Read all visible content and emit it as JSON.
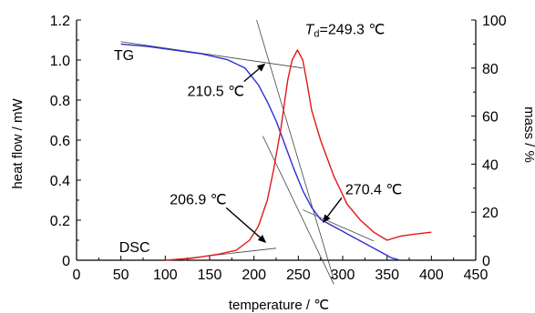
{
  "chart_data": {
    "type": "line",
    "xlabel": "temperature / ℃",
    "ylabel_left": "heat flow / mW",
    "ylabel_right": "mass / %",
    "xlim": [
      0,
      450
    ],
    "ylim_left": [
      0,
      1.2
    ],
    "ylim_right": [
      0,
      100
    ],
    "x_ticks": [
      0,
      50,
      100,
      150,
      200,
      250,
      300,
      350,
      400,
      450
    ],
    "y_left_ticks": [
      0,
      0.2,
      0.4,
      0.6,
      0.8,
      1.0,
      1.2
    ],
    "y_left_tick_labels": [
      "0",
      "0.2",
      "0.4",
      "0.6",
      "0.8",
      "1.0",
      "1.2"
    ],
    "y_right_ticks": [
      0,
      20,
      40,
      60,
      80,
      100
    ],
    "grid": false,
    "series": [
      {
        "name": "TG",
        "axis": "right",
        "color": "#2f2fd6",
        "x": [
          50,
          80,
          110,
          140,
          170,
          190,
          205,
          215,
          225,
          235,
          245,
          255,
          265,
          275,
          285,
          300,
          320,
          340,
          355,
          365
        ],
        "y": [
          90,
          89,
          87.5,
          86,
          83.5,
          80,
          73,
          66,
          58,
          48,
          38,
          29,
          22,
          17,
          15,
          12,
          8,
          4,
          1,
          0
        ]
      },
      {
        "name": "DSC",
        "axis": "left",
        "color": "#e01818",
        "x": [
          100,
          130,
          160,
          180,
          195,
          205,
          215,
          222,
          230,
          238,
          243,
          249,
          255,
          260,
          265,
          275,
          290,
          305,
          320,
          335,
          350,
          365,
          380,
          400
        ],
        "y": [
          0,
          0.01,
          0.03,
          0.05,
          0.1,
          0.17,
          0.3,
          0.45,
          0.65,
          0.9,
          1.0,
          1.05,
          1.0,
          0.88,
          0.75,
          0.6,
          0.42,
          0.28,
          0.2,
          0.14,
          0.1,
          0.12,
          0.13,
          0.14
        ]
      }
    ],
    "series_labels": [
      {
        "text": "TG",
        "x": 42,
        "y_left": 1.0
      },
      {
        "text": "DSC",
        "x": 48,
        "y_left": 0.04
      }
    ],
    "annotations": [
      {
        "text": "210.5 ℃",
        "label_x": 125,
        "label_y_left": 0.82,
        "point_x": 212,
        "point_y_left": 0.98
      },
      {
        "text": "206.9 ℃",
        "label_x": 105,
        "label_y_left": 0.28,
        "point_x": 213,
        "point_y_left": 0.09
      },
      {
        "text": "270.4 ℃",
        "label_x": 303,
        "label_y_left": 0.33,
        "point_x": 278,
        "point_y_left": 0.19
      }
    ],
    "peak_label": {
      "prefix": "T",
      "subscript": "d",
      "suffix": "=249.3 ℃",
      "x": 249.3,
      "y_left": 1.13
    },
    "tangent_lines": [
      {
        "axis": "right",
        "x": [
          50,
          255
        ],
        "y": [
          91,
          80
        ]
      },
      {
        "axis": "right",
        "x": [
          203,
          290
        ],
        "y": [
          100,
          -8
        ]
      },
      {
        "axis": "right",
        "x": [
          255,
          335
        ],
        "y": [
          21,
          8
        ]
      },
      {
        "axis": "left",
        "x": [
          210,
          290
        ],
        "y": [
          0.62,
          -0.12
        ]
      },
      {
        "axis": "left",
        "x": [
          105,
          225
        ],
        "y": [
          0.0,
          0.06
        ]
      }
    ]
  }
}
